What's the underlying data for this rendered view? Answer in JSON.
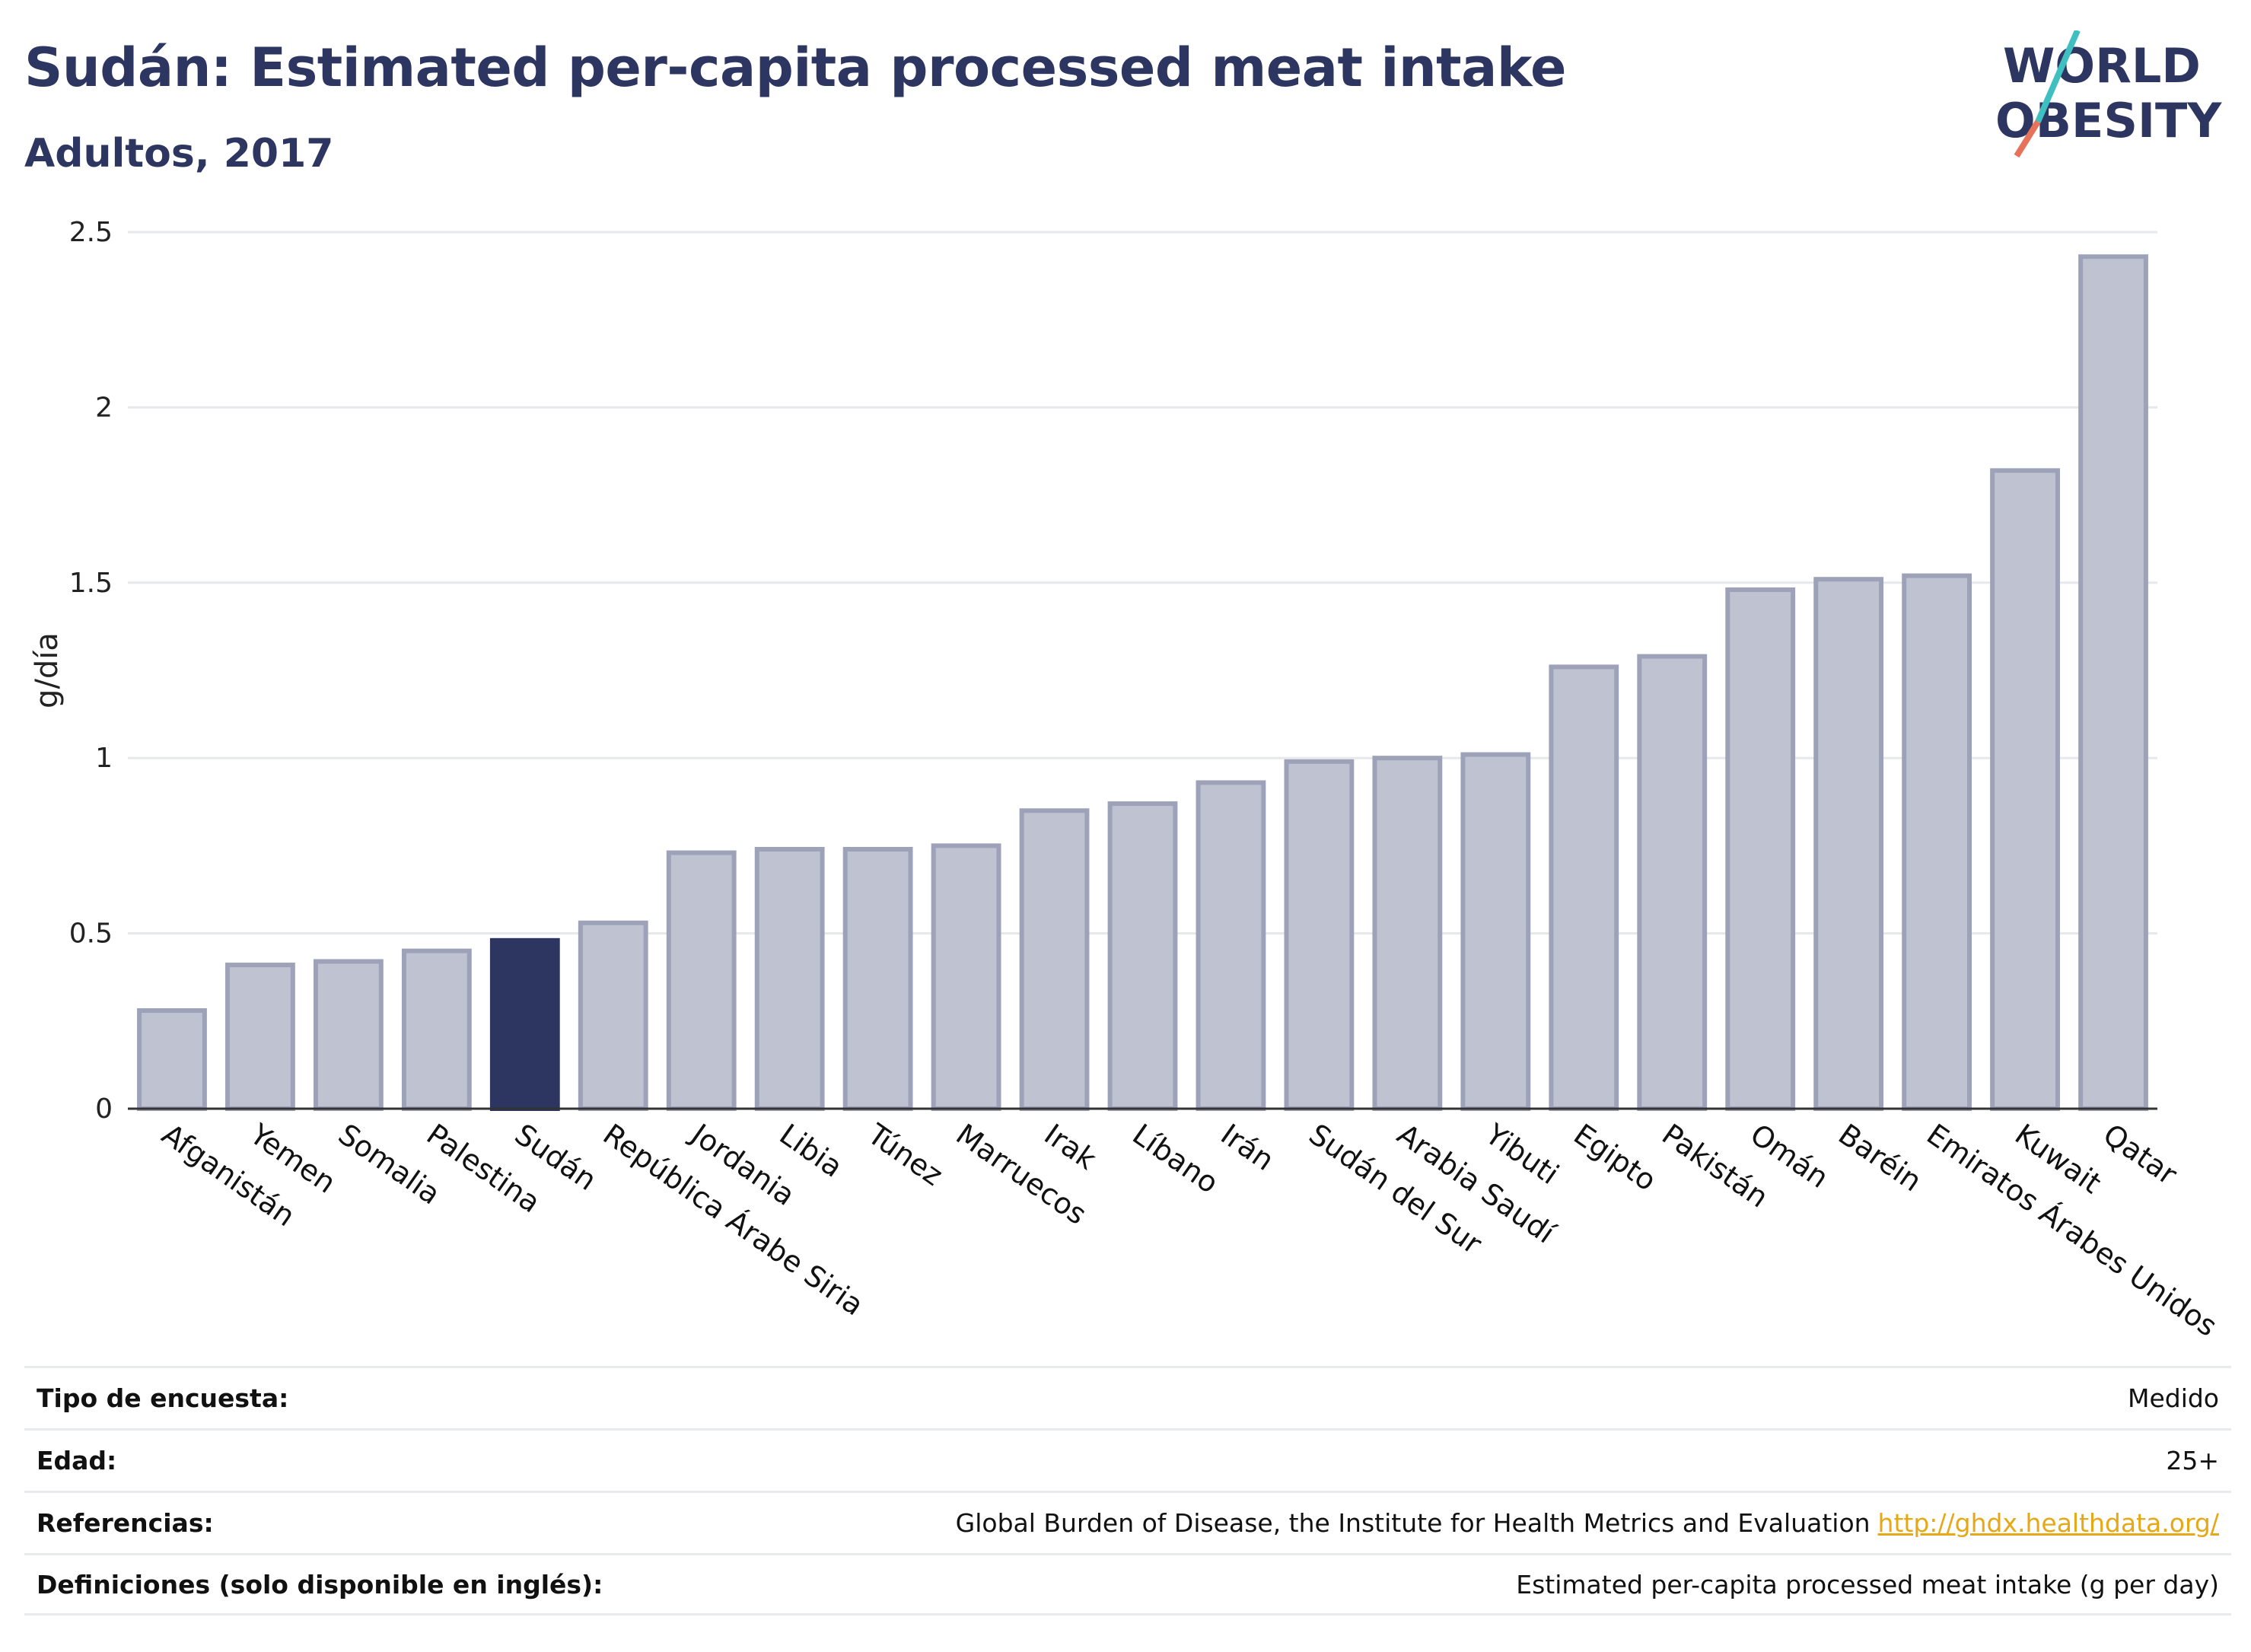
{
  "header": {
    "title": "Sudán: Estimated per-capita processed meat intake",
    "subtitle": "Adultos, 2017"
  },
  "logo": {
    "line1": "WORLD",
    "line2": "OBESITY"
  },
  "chart_data": {
    "type": "bar",
    "ylabel": "g/día",
    "xlabel": "",
    "ylim": [
      0,
      2.5
    ],
    "yticks": [
      "0",
      "0.5",
      "1",
      "1.5",
      "2",
      "2.5"
    ],
    "highlight": "Sudán",
    "categories": [
      "Afganistán",
      "Yemen",
      "Somalia",
      "Palestina",
      "Sudán",
      "República Árabe Siria",
      "Jordania",
      "Libia",
      "Túnez",
      "Marruecos",
      "Irak",
      "Líbano",
      "Irán",
      "Sudán del Sur",
      "Arabia Saudí",
      "Yibuti",
      "Egipto",
      "Pakistán",
      "Omán",
      "Baréin",
      "Emiratos Árabes Unidos",
      "Kuwait",
      "Qatar"
    ],
    "values": [
      0.28,
      0.41,
      0.42,
      0.45,
      0.48,
      0.53,
      0.73,
      0.74,
      0.74,
      0.75,
      0.85,
      0.87,
      0.93,
      0.99,
      1.0,
      1.01,
      1.26,
      1.29,
      1.48,
      1.51,
      1.52,
      1.82,
      2.43
    ],
    "grid": true,
    "colors": {
      "bar": "#bfc2d0",
      "bar_border": "#9da2b8",
      "highlight": "#2d3561",
      "grid": "#e6e8ec"
    }
  },
  "info": [
    {
      "label": "Tipo de encuesta:",
      "value": "Medido"
    },
    {
      "label": "Edad:",
      "value": "25+"
    },
    {
      "label": "Referencias:",
      "value": "Global Burden of Disease, the Institute for Health Metrics and Evaluation",
      "link": "http://ghdx.healthdata.org/"
    },
    {
      "label": "Definiciones (solo disponible en inglés):",
      "value": "Estimated per-capita processed meat intake (g per day)"
    }
  ]
}
